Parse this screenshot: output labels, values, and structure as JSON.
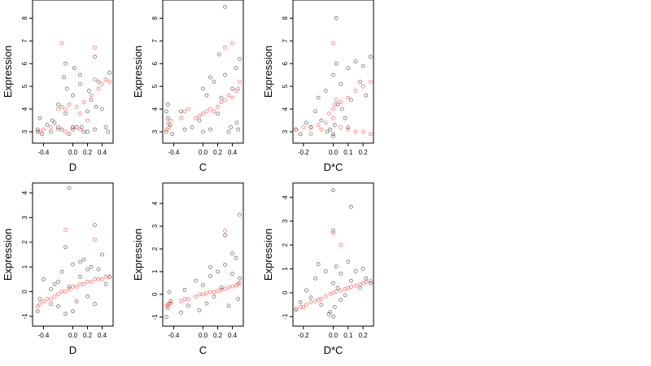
{
  "chart_data": [
    {
      "type": "scatter",
      "xlabel": "D",
      "ylabel": "Expression",
      "xlim": [
        -0.55,
        0.55
      ],
      "ylim": [
        2.5,
        8.8
      ],
      "xticks": [
        -0.4,
        0.0,
        0.2,
        0.4
      ],
      "yticks": [
        3,
        4,
        5,
        6,
        7,
        8
      ],
      "xtick_labels": [
        "-0.4",
        "0.0",
        "0.2",
        "0.4"
      ],
      "ytick_labels": [
        "3",
        "4",
        "5",
        "6",
        "7",
        "8"
      ],
      "series": [
        {
          "color": "#000000",
          "x": [
            -0.48,
            -0.45,
            -0.42,
            -0.3,
            -0.25,
            -0.2,
            -0.15,
            -0.1,
            -0.05,
            0.0,
            0.05,
            0.1,
            0.15,
            0.2,
            0.25,
            0.3,
            0.35,
            0.4,
            0.45,
            0.5,
            -0.35,
            -0.12,
            0.02,
            0.22,
            -0.48,
            -0.28,
            -0.08,
            0.12,
            0.32,
            0.48,
            -0.1,
            0.1,
            0.3,
            -0.2,
            0.0,
            0.2
          ],
          "y": [
            3.1,
            3.6,
            2.9,
            3.0,
            3.4,
            4.2,
            3.1,
            3.8,
            2.9,
            4.6,
            3.2,
            5.1,
            3.0,
            3.9,
            4.4,
            3.1,
            5.2,
            4.0,
            3.2,
            5.6,
            3.3,
            5.4,
            5.8,
            4.8,
            3.0,
            3.5,
            4.9,
            3.2,
            4.1,
            3.0,
            6.0,
            5.5,
            6.3,
            3.2,
            3.1,
            3.0
          ]
        },
        {
          "color": "#ff0000",
          "x": [
            -0.45,
            -0.4,
            -0.3,
            -0.2,
            -0.15,
            -0.1,
            -0.05,
            0.0,
            0.05,
            0.1,
            0.15,
            0.2,
            0.25,
            0.3,
            0.35,
            0.4,
            0.45,
            0.5,
            -0.2,
            -0.1,
            0.0,
            0.1,
            0.3,
            -0.15
          ],
          "y": [
            3.0,
            3.1,
            3.2,
            4.0,
            4.1,
            4.0,
            4.2,
            3.2,
            4.1,
            3.8,
            4.3,
            3.5,
            4.6,
            5.3,
            4.9,
            5.1,
            5.3,
            5.2,
            3.1,
            3.0,
            3.2,
            3.1,
            6.7,
            6.9
          ]
        }
      ]
    },
    {
      "type": "scatter",
      "xlabel": "C",
      "ylabel": "Expression",
      "xlim": [
        -0.55,
        0.55
      ],
      "ylim": [
        2.5,
        8.8
      ],
      "xticks": [
        -0.4,
        0.0,
        0.2,
        0.4
      ],
      "yticks": [
        3,
        4,
        5,
        6,
        7,
        8
      ],
      "xtick_labels": [
        "-0.4",
        "0.0",
        "0.2",
        "0.4"
      ],
      "ytick_labels": [
        "3",
        "4",
        "5",
        "6",
        "7",
        "8"
      ],
      "series": [
        {
          "color": "#000000",
          "x": [
            -0.5,
            -0.48,
            -0.45,
            -0.42,
            -0.3,
            -0.25,
            -0.15,
            -0.05,
            0.0,
            0.05,
            0.1,
            0.15,
            0.2,
            0.25,
            0.3,
            0.35,
            0.4,
            0.45,
            0.5,
            0.48,
            0.46,
            0.1,
            0.22,
            0.38,
            -0.5,
            -0.48,
            0.0,
            0.3
          ],
          "y": [
            3.0,
            3.6,
            3.3,
            2.9,
            3.9,
            3.1,
            3.2,
            3.5,
            3.0,
            4.6,
            3.1,
            5.2,
            3.8,
            4.5,
            5.5,
            3.0,
            4.9,
            5.8,
            6.2,
            3.1,
            3.4,
            5.4,
            6.4,
            3.2,
            3.9,
            4.2,
            4.9,
            8.5
          ]
        },
        {
          "color": "#ff0000",
          "x": [
            -0.5,
            -0.48,
            -0.46,
            -0.44,
            -0.3,
            -0.25,
            -0.2,
            -0.1,
            -0.05,
            0.0,
            0.05,
            0.1,
            0.15,
            0.2,
            0.25,
            0.3,
            0.35,
            0.4,
            0.45,
            0.48,
            0.5,
            0.3,
            0.4
          ],
          "y": [
            3.1,
            3.4,
            3.2,
            3.5,
            3.6,
            3.9,
            4.0,
            3.6,
            3.7,
            3.8,
            3.9,
            4.0,
            3.9,
            4.1,
            4.3,
            4.4,
            4.6,
            4.5,
            4.8,
            4.9,
            5.2,
            6.7,
            6.9
          ]
        }
      ]
    },
    {
      "type": "scatter",
      "xlabel": "D*C",
      "ylabel": "Expression",
      "xlim": [
        -0.27,
        0.27
      ],
      "ylim": [
        2.5,
        8.8
      ],
      "xticks": [
        -0.2,
        0.0,
        0.1,
        0.2
      ],
      "yticks": [
        3,
        4,
        5,
        6,
        7,
        8
      ],
      "xtick_labels": [
        "-0.2",
        "0.0",
        "0.1",
        "0.2"
      ],
      "ytick_labels": [
        "3",
        "4",
        "5",
        "6",
        "7",
        "8"
      ],
      "series": [
        {
          "color": "#000000",
          "x": [
            -0.25,
            -0.22,
            -0.18,
            -0.15,
            -0.12,
            -0.08,
            -0.05,
            -0.02,
            0.0,
            0.0,
            0.01,
            0.02,
            0.03,
            0.05,
            0.08,
            0.1,
            0.12,
            0.15,
            0.18,
            0.2,
            0.22,
            0.25,
            -0.04,
            0.0,
            0.02,
            0.06,
            -0.1,
            0.1
          ],
          "y": [
            3.1,
            2.9,
            3.4,
            3.2,
            3.9,
            3.5,
            4.8,
            3.1,
            2.9,
            5.5,
            3.3,
            6.0,
            4.2,
            5.1,
            3.6,
            5.8,
            4.4,
            6.1,
            5.2,
            5.9,
            4.6,
            6.3,
            3.0,
            2.8,
            8.0,
            4.0,
            4.5,
            3.2
          ]
        },
        {
          "color": "#ff0000",
          "x": [
            -0.25,
            -0.2,
            -0.15,
            -0.1,
            -0.05,
            -0.03,
            0.0,
            0.0,
            0.01,
            0.02,
            0.05,
            0.1,
            0.15,
            0.2,
            0.25,
            -0.15,
            -0.08,
            0.05,
            0.1,
            0.15,
            0.2,
            0.25,
            0.0
          ],
          "y": [
            3.1,
            3.2,
            3.2,
            3.3,
            3.4,
            3.8,
            4.0,
            3.6,
            4.2,
            4.4,
            4.3,
            4.5,
            4.8,
            5.0,
            5.2,
            2.9,
            3.1,
            3.2,
            3.1,
            3.0,
            3.0,
            2.9,
            6.9
          ]
        }
      ]
    },
    {
      "type": "scatter",
      "xlabel": "D",
      "ylabel": "Expression",
      "xlim": [
        -0.55,
        0.55
      ],
      "ylim": [
        -1.4,
        4.4
      ],
      "xticks": [
        -0.4,
        0.0,
        0.2,
        0.4
      ],
      "yticks": [
        -1,
        0,
        1,
        2,
        3,
        4
      ],
      "xtick_labels": [
        "-0.4",
        "0.0",
        "0.2",
        "0.4"
      ],
      "ytick_labels": [
        "-1",
        "0",
        "1",
        "2",
        "3",
        "4"
      ],
      "series": [
        {
          "color": "#000000",
          "x": [
            -0.48,
            -0.45,
            -0.4,
            -0.3,
            -0.25,
            -0.2,
            -0.15,
            -0.1,
            -0.05,
            0.0,
            0.05,
            0.1,
            0.15,
            0.2,
            0.25,
            0.3,
            0.35,
            0.4,
            0.45,
            0.5,
            -0.3,
            -0.1,
            0.0,
            0.2,
            -0.2,
            0.3,
            -0.05,
            0.1
          ],
          "y": [
            -0.8,
            -0.3,
            0.5,
            -0.5,
            0.3,
            -0.6,
            0.8,
            -0.9,
            0.2,
            1.1,
            -0.4,
            0.6,
            1.3,
            -0.2,
            1.0,
            2.7,
            0.9,
            1.5,
            0.3,
            0.6,
            0.1,
            1.8,
            -0.8,
            0.9,
            0.4,
            -0.5,
            4.2,
            1.2
          ]
        },
        {
          "color": "#ff0000",
          "x": [
            -0.48,
            -0.45,
            -0.4,
            -0.35,
            -0.3,
            -0.25,
            -0.2,
            -0.15,
            -0.1,
            -0.05,
            0.0,
            0.05,
            0.1,
            0.15,
            0.2,
            0.25,
            0.3,
            0.35,
            0.4,
            0.45,
            0.5,
            -0.1,
            0.3
          ],
          "y": [
            -0.6,
            -0.5,
            -0.4,
            -0.3,
            -0.3,
            -0.2,
            -0.1,
            0.0,
            0.0,
            0.1,
            0.2,
            0.2,
            0.3,
            0.3,
            0.4,
            0.4,
            0.5,
            0.5,
            0.5,
            0.6,
            0.6,
            2.5,
            2.1
          ]
        }
      ]
    },
    {
      "type": "scatter",
      "xlabel": "C",
      "ylabel": "Expression",
      "xlim": [
        -0.55,
        0.55
      ],
      "ylim": [
        -1.4,
        4.9
      ],
      "xticks": [
        -0.4,
        0.0,
        0.2,
        0.4
      ],
      "yticks": [
        -1,
        0,
        1,
        2,
        3,
        4
      ],
      "xtick_labels": [
        "-0.4",
        "0.0",
        "0.2",
        "0.4"
      ],
      "ytick_labels": [
        "-1",
        "0",
        "1",
        "2",
        "3",
        "4"
      ],
      "series": [
        {
          "color": "#000000",
          "x": [
            -0.5,
            -0.48,
            -0.46,
            -0.44,
            -0.3,
            -0.25,
            -0.2,
            -0.1,
            -0.05,
            0.0,
            0.05,
            0.1,
            0.15,
            0.2,
            0.25,
            0.3,
            0.35,
            0.4,
            0.45,
            0.48,
            0.5,
            0.1,
            0.3,
            0.4,
            0.5
          ],
          "y": [
            -1.0,
            -0.6,
            0.1,
            -0.3,
            -0.8,
            0.2,
            -0.5,
            0.6,
            -0.7,
            0.4,
            -0.4,
            0.8,
            -0.1,
            1.0,
            0.3,
            1.3,
            -0.5,
            0.9,
            1.6,
            -0.2,
            0.7,
            1.2,
            2.6,
            1.8,
            3.5
          ]
        },
        {
          "color": "#ff0000",
          "x": [
            -0.5,
            -0.48,
            -0.46,
            -0.44,
            -0.3,
            -0.25,
            -0.2,
            -0.1,
            -0.05,
            0.0,
            0.05,
            0.1,
            0.15,
            0.2,
            0.25,
            0.3,
            0.35,
            0.4,
            0.45,
            0.48,
            0.5,
            0.3
          ],
          "y": [
            -0.5,
            -0.45,
            -0.4,
            -0.4,
            -0.3,
            -0.2,
            -0.2,
            -0.1,
            0.0,
            0.0,
            0.05,
            0.1,
            0.1,
            0.15,
            0.2,
            0.25,
            0.3,
            0.35,
            0.4,
            0.45,
            0.5,
            2.8
          ]
        }
      ]
    },
    {
      "type": "scatter",
      "xlabel": "D*C",
      "ylabel": "Expression",
      "xlim": [
        -0.27,
        0.27
      ],
      "ylim": [
        -1.4,
        4.6
      ],
      "xticks": [
        -0.2,
        0.0,
        0.1,
        0.2
      ],
      "yticks": [
        -1,
        0,
        1,
        2,
        3,
        4
      ],
      "xtick_labels": [
        "-0.2",
        "0.0",
        "0.1",
        "0.2"
      ],
      "ytick_labels": [
        "-1",
        "0",
        "1",
        "2",
        "3",
        "4"
      ],
      "series": [
        {
          "color": "#000000",
          "x": [
            -0.25,
            -0.22,
            -0.18,
            -0.15,
            -0.12,
            -0.08,
            -0.05,
            -0.02,
            0.0,
            0.0,
            0.01,
            0.02,
            0.03,
            0.05,
            0.08,
            0.1,
            0.12,
            0.15,
            0.18,
            0.2,
            0.22,
            0.25,
            0.0,
            0.12,
            -0.1,
            0.05,
            0.0,
            -0.03
          ],
          "y": [
            -0.7,
            -0.4,
            0.1,
            -0.2,
            0.6,
            -0.5,
            0.9,
            -0.8,
            -1.0,
            0.4,
            -0.6,
            1.1,
            0.2,
            0.8,
            -0.1,
            1.3,
            0.5,
            0.9,
            0.2,
            1.0,
            0.6,
            0.4,
            4.3,
            3.6,
            1.2,
            -0.3,
            2.6,
            -0.9
          ]
        },
        {
          "color": "#ff0000",
          "x": [
            -0.25,
            -0.22,
            -0.2,
            -0.18,
            -0.15,
            -0.12,
            -0.1,
            -0.08,
            -0.05,
            -0.02,
            0.0,
            0.02,
            0.05,
            0.08,
            0.1,
            0.12,
            0.15,
            0.18,
            0.2,
            0.22,
            0.25,
            0.0,
            0.05
          ],
          "y": [
            -0.7,
            -0.6,
            -0.6,
            -0.5,
            -0.4,
            -0.35,
            -0.3,
            -0.25,
            -0.15,
            -0.05,
            0.0,
            0.05,
            0.1,
            0.15,
            0.2,
            0.25,
            0.3,
            0.35,
            0.4,
            0.45,
            0.5,
            2.5,
            2.0
          ]
        }
      ]
    }
  ]
}
